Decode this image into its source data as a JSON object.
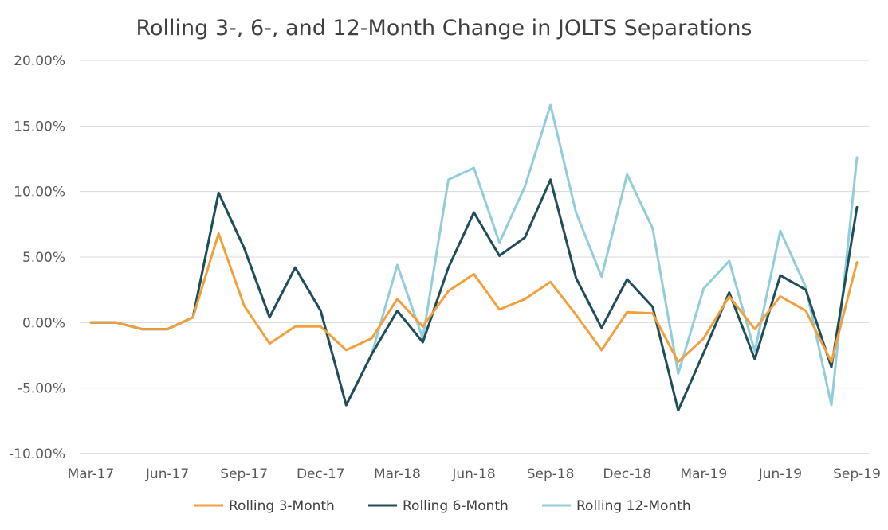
{
  "chart_data": {
    "type": "line",
    "title": "Rolling 3-, 6-, and 12-Month Change in JOLTS Separations",
    "xlabel": "",
    "ylabel": "",
    "ylim": [
      -10,
      20
    ],
    "y_ticks": [
      20,
      15,
      10,
      5,
      0,
      -5,
      -10
    ],
    "y_tick_labels": [
      "20.00%",
      "15.00%",
      "10.00%",
      "5.00%",
      "0.00%",
      "-5.00%",
      "-10.00%"
    ],
    "x_tick_labels": [
      {
        "index": 0,
        "label": "Mar-17"
      },
      {
        "index": 3,
        "label": "Jun-17"
      },
      {
        "index": 6,
        "label": "Sep-17"
      },
      {
        "index": 9,
        "label": "Dec-17"
      },
      {
        "index": 12,
        "label": "Mar-18"
      },
      {
        "index": 15,
        "label": "Jun-18"
      },
      {
        "index": 18,
        "label": "Sep-18"
      },
      {
        "index": 21,
        "label": "Dec-18"
      },
      {
        "index": 24,
        "label": "Mar-19"
      },
      {
        "index": 27,
        "label": "Jun-19"
      },
      {
        "index": 30,
        "label": "Sep-19"
      }
    ],
    "categories": [
      "Mar-17",
      "Apr-17",
      "May-17",
      "Jun-17",
      "Jul-17",
      "Aug-17",
      "Sep-17",
      "Oct-17",
      "Nov-17",
      "Dec-17",
      "Jan-18",
      "Feb-18",
      "Mar-18",
      "Apr-18",
      "May-18",
      "Jun-18",
      "Jul-18",
      "Aug-18",
      "Sep-18",
      "Oct-18",
      "Nov-18",
      "Dec-18",
      "Jan-19",
      "Feb-19",
      "Mar-19",
      "Apr-19",
      "May-19",
      "Jun-19",
      "Jul-19",
      "Aug-19",
      "Sep-19"
    ],
    "series": [
      {
        "name": "Rolling 3-Month",
        "color": "#f2a03d",
        "values": [
          0,
          0,
          -0.5,
          -0.5,
          0.4,
          6.8,
          1.3,
          -1.6,
          -0.3,
          -0.3,
          -2.1,
          -1.2,
          1.8,
          -0.3,
          2.4,
          3.7,
          1.0,
          1.8,
          3.1,
          0.6,
          -2.1,
          0.8,
          0.7,
          -3.0,
          -1.2,
          2.0,
          -0.5,
          2.0,
          0.9,
          -3.0,
          4.6
        ]
      },
      {
        "name": "Rolling 6-Month",
        "color": "#1f4e5a",
        "values": [
          0,
          0,
          -0.5,
          -0.5,
          0.4,
          9.9,
          5.7,
          0.4,
          4.2,
          0.9,
          -6.3,
          -2.4,
          0.9,
          -1.5,
          4.2,
          8.4,
          5.1,
          6.5,
          10.9,
          3.4,
          -0.4,
          3.3,
          1.2,
          -6.7,
          -2.3,
          2.3,
          -2.8,
          3.6,
          2.5,
          -3.4,
          8.8
        ]
      },
      {
        "name": "Rolling 12-Month",
        "color": "#92cddb",
        "values": [
          0,
          0,
          -0.5,
          -0.5,
          0.4,
          9.9,
          5.7,
          0.4,
          4.2,
          0.9,
          -6.3,
          -2.4,
          4.4,
          -1.2,
          10.9,
          11.8,
          6.1,
          10.4,
          16.6,
          8.4,
          3.5,
          11.3,
          7.2,
          -3.9,
          2.6,
          4.7,
          -2.2,
          7.0,
          2.7,
          -6.3,
          12.6
        ]
      }
    ],
    "legend_position": "bottom"
  }
}
